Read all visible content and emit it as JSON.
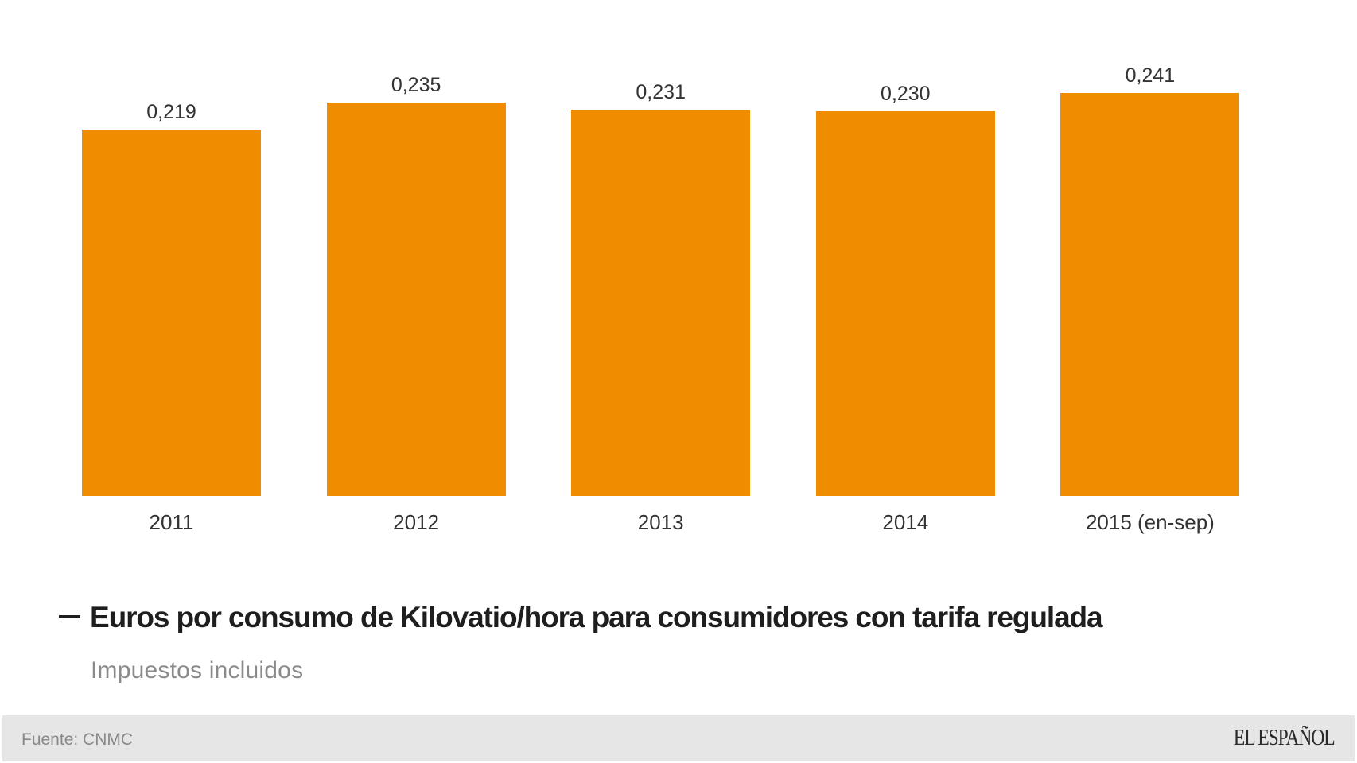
{
  "chart_data": {
    "type": "bar",
    "title": "Euros por consumo de Kilovatio/hora para consumidores con tarifa regulada",
    "subtitle": "Impuestos incluidos",
    "categories": [
      "2011",
      "2012",
      "2013",
      "2014",
      "2015 (en-sep)"
    ],
    "values": [
      0.219,
      0.235,
      0.231,
      0.23,
      0.241
    ],
    "value_labels": [
      "0,219",
      "0,235",
      "0,231",
      "0,230",
      "0,241"
    ],
    "xlabel": "",
    "ylabel": "",
    "ylim": [
      0,
      0.25
    ],
    "grid": false,
    "legend": null,
    "bar_color": "#EF8C00"
  },
  "header": {
    "title": "Euros por consumo de Kilovatio/hora para consumidores con tarifa regulada",
    "subtitle": "Impuestos incluidos"
  },
  "footer": {
    "source": "Fuente: CNMC",
    "logo": "EL ESPAÑOL"
  }
}
